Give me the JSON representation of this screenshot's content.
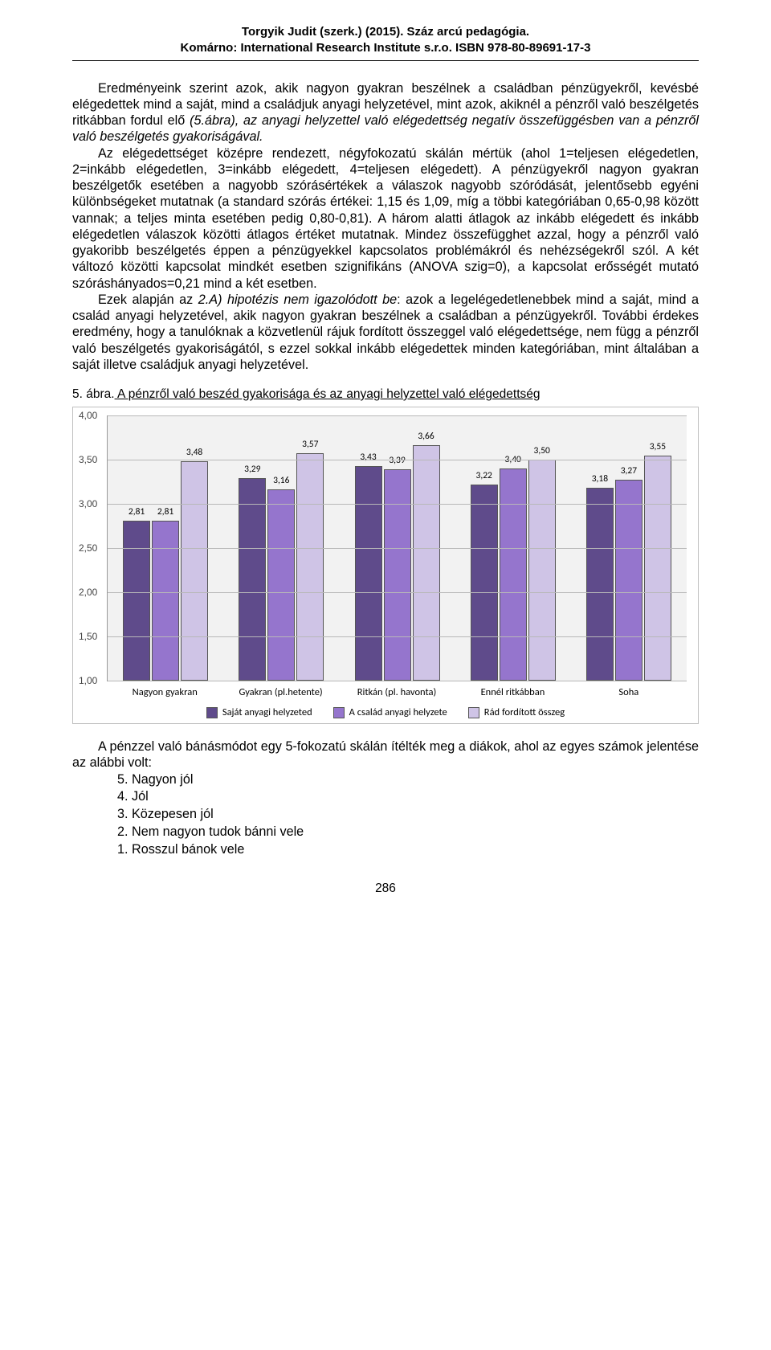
{
  "header": {
    "line1": "Torgyik Judit (szerk.) (2015). Száz arcú pedagógia.",
    "line2": "Komárno: International Research Institute s.r.o. ISBN 978-80-89691-17-3"
  },
  "para1_a": "Eredményeink szerint azok, akik nagyon gyakran beszélnek a családban pénzügyekről, kevésbé elégedettek mind a saját, mind a családjuk anyagi helyzetével, mint azok, akiknél a pénzről való beszélgetés ritkábban fordul elő ",
  "para1_i": "(5.ábra), az anyagi helyzettel való elégedettség  negatív összefüggésben van a pénzről való beszélgetés gyakoriságával.",
  "para2": "Az elégedettséget középre rendezett, négyfokozatú skálán mértük (ahol 1=teljesen elégedetlen, 2=inkább elégedetlen, 3=inkább elégedett, 4=teljesen elégedett). A pénzügyekről nagyon gyakran beszélgetők esetében a nagyobb szórásértékek a válaszok nagyobb szóródását, jelentősebb egyéni különbségeket mutatnak (a standard szórás értékei: 1,15 és 1,09, míg a többi kategóriában 0,65-0,98 között vannak; a teljes minta esetében pedig 0,80-0,81). A három alatti átlagok az inkább elégedett és inkább elégedetlen válaszok közötti átlagos értéket mutatnak. Mindez összefügghet azzal, hogy a pénzről való gyakoribb beszélgetés éppen a pénzügyekkel kapcsolatos problémákról és nehézségekről szól. A két változó közötti kapcsolat mindkét esetben szignifikáns (ANOVA szig=0), a kapcsolat erősségét mutató szóráshányados=0,21 mind a két esetben.",
  "para3_a": "Ezek alapján az ",
  "para3_i": "2.A) hipotézis nem igazolódott be",
  "para3_b": ": azok a legelégedetlenebbek mind a saját, mind a család anyagi helyzetével, akik nagyon gyakran beszélnek a családban a pénzügyekről. További érdekes eredmény, hogy a tanulóknak a közvetlenül rájuk fordított összeggel való elégedettsége, nem függ a pénzről való beszélgetés gyakoriságától, s ezzel sokkal inkább elégedettek minden kategóriában, mint általában a saját illetve családjuk anyagi helyzetével.",
  "fig_caption_prefix": "5. ábra.",
  "fig_caption_text": " A pénzről való beszéd gyakorisága és az anyagi helyzettel való elégedettség",
  "chart": {
    "type": "bar",
    "ymin": 1.0,
    "ymax": 4.0,
    "yticks": [
      "1,00",
      "1,50",
      "2,00",
      "2,50",
      "3,00",
      "3,50",
      "4,00"
    ],
    "background": "#f2f2f2",
    "grid_color": "#b8b8b8",
    "border_color": "#999999",
    "series_colors": [
      "#5f4b8b",
      "#9575cd",
      "#cfc4e6"
    ],
    "categories": [
      "Nagyon gyakran",
      "Gyakran (pl.hetente)",
      "Ritkán (pl. havonta)",
      "Ennél ritkábban",
      "Soha"
    ],
    "series": [
      {
        "name": "Saját anyagi helyzeted",
        "values": [
          2.81,
          3.29,
          3.43,
          3.22,
          3.18
        ],
        "labels": [
          "2,81",
          "3,29",
          "3,43",
          "3,22",
          "3,18"
        ]
      },
      {
        "name": "A család anyagi helyzete",
        "values": [
          2.81,
          3.16,
          3.39,
          3.4,
          3.27
        ],
        "labels": [
          "2,81",
          "3,16",
          "3,39",
          "3,40",
          "3,27"
        ]
      },
      {
        "name": "Rád fordított összeg",
        "values": [
          3.48,
          3.57,
          3.66,
          3.5,
          3.55
        ],
        "labels": [
          "3,48",
          "3,57",
          "3,66",
          "3,50",
          "3,55"
        ]
      }
    ]
  },
  "after_chart": "A pénzzel való bánásmódot egy 5-fokozatú skálán ítélték meg a diákok, ahol az egyes számok jelentése az alábbi volt:",
  "list": [
    "5. Nagyon jól",
    "4. Jól",
    "3. Közepesen jól",
    "2. Nem nagyon tudok bánni vele",
    "1. Rosszul bánok vele"
  ],
  "page_number": "286"
}
